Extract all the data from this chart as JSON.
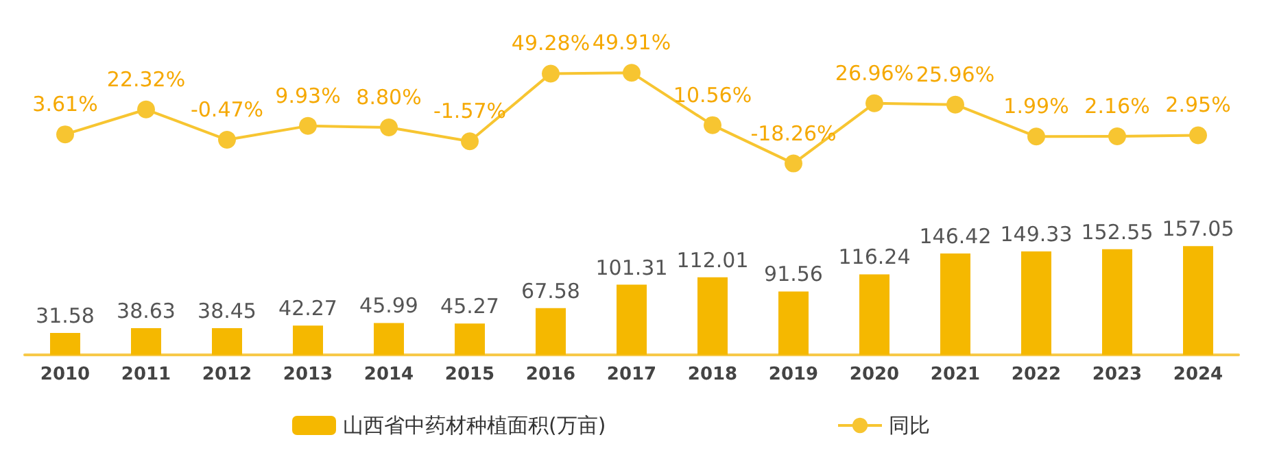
{
  "chart_data": [
    {
      "type": "line",
      "categories": [
        "2010",
        "2011",
        "2012",
        "2013",
        "2014",
        "2015",
        "2016",
        "2017",
        "2018",
        "2019",
        "2020",
        "2021",
        "2022",
        "2023",
        "2024"
      ],
      "series": [
        {
          "name": "同比",
          "color": "#f7c531",
          "values": [
            3.61,
            22.32,
            -0.47,
            9.93,
            8.8,
            -1.57,
            49.28,
            49.91,
            10.56,
            -18.26,
            26.96,
            25.96,
            1.99,
            2.16,
            2.95
          ],
          "value_labels": [
            "3.61%",
            "22.32%",
            "-0.47%",
            "9.93%",
            "8.80%",
            "-1.57%",
            "49.28%",
            "49.91%",
            "10.56%",
            "-18.26%",
            "26.96%",
            "25.96%",
            "1.99%",
            "2.16%",
            "2.95%"
          ]
        }
      ],
      "legend": "bottom right",
      "marker": "circle",
      "tick_labels": false
    },
    {
      "type": "bar",
      "categories": [
        "2010",
        "2011",
        "2012",
        "2013",
        "2014",
        "2015",
        "2016",
        "2017",
        "2018",
        "2019",
        "2020",
        "2021",
        "2022",
        "2023",
        "2024"
      ],
      "series": [
        {
          "name": "山西省中药材种植面积(万亩)",
          "color": "#f5b800",
          "values": [
            31.58,
            38.63,
            38.45,
            42.27,
            45.99,
            45.27,
            67.58,
            101.31,
            112.01,
            91.56,
            116.24,
            146.42,
            149.33,
            152.55,
            157.05
          ],
          "value_labels": [
            "31.58",
            "38.63",
            "38.45",
            "42.27",
            "45.99",
            "45.27",
            "67.58",
            "101.31",
            "112.01",
            "91.56",
            "116.24",
            "146.42",
            "149.33",
            "152.55",
            "157.05"
          ]
        }
      ],
      "legend": "bottom left",
      "tick_labels": "x"
    }
  ]
}
